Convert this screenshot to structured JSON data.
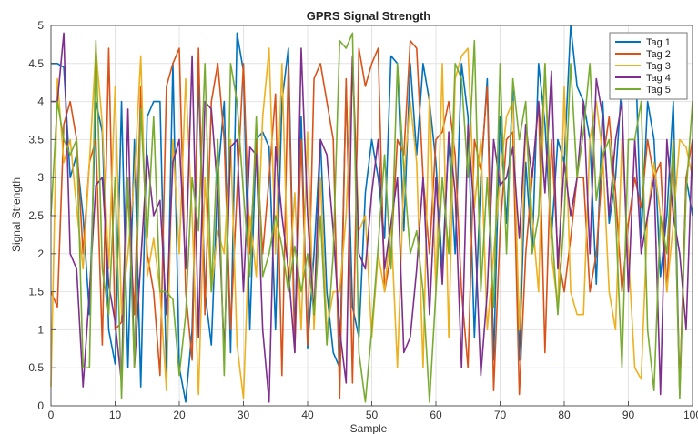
{
  "chart_data": {
    "type": "line",
    "title": "GPRS Signal Strength",
    "xlabel": "Sample",
    "ylabel": "Signal Strength",
    "xlim": [
      0,
      100
    ],
    "ylim": [
      0,
      5
    ],
    "xticks": [
      0,
      10,
      20,
      30,
      40,
      50,
      60,
      70,
      80,
      90,
      100
    ],
    "yticks": [
      0,
      0.5,
      1,
      1.5,
      2,
      2.5,
      3,
      3.5,
      4,
      4.5,
      5
    ],
    "grid": true,
    "legend_position": "top-right",
    "series": [
      {
        "name": "Tag 1",
        "color": "#0072BD",
        "values": [
          4.5,
          4.5,
          4.45,
          3.0,
          3.3,
          2.5,
          1.2,
          4.0,
          3.6,
          1.0,
          0.55,
          4.0,
          0.5,
          3.5,
          0.25,
          3.8,
          4.0,
          4.0,
          0.4,
          4.5,
          0.5,
          0.05,
          1.0,
          4.3,
          1.5,
          0.8,
          3.0,
          4.0,
          0.7,
          4.9,
          4.4,
          1.0,
          3.5,
          3.6,
          3.4,
          1.0,
          4.0,
          4.7,
          0.9,
          3.8,
          0.75,
          2.0,
          3.5,
          1.5,
          0.7,
          0.5,
          4.2,
          1.3,
          0.9,
          2.8,
          3.5,
          3.0,
          2.2,
          4.6,
          4.5,
          2.3,
          4.5,
          3.3,
          4.5,
          4.0,
          3.2,
          1.8,
          3.5,
          2.0,
          4.5,
          3.8,
          0.9,
          3.0,
          4.3,
          0.6,
          3.8,
          2.4,
          4.2,
          0.6,
          3.2,
          2.0,
          4.5,
          3.7,
          2.2,
          3.5,
          3.2,
          5.0,
          4.2,
          4.0,
          3.5,
          1.6,
          4.0,
          2.4,
          3.0,
          4.3,
          4.2,
          4.9,
          2.2,
          4.0,
          3.5,
          1.7,
          2.5,
          4.0,
          0.15,
          3.0,
          2.5
        ]
      },
      {
        "name": "Tag 2",
        "color": "#D95319",
        "values": [
          1.5,
          1.3,
          3.7,
          4.0,
          3.5,
          2.0,
          3.2,
          3.5,
          0.8,
          4.7,
          1.0,
          1.1,
          2.8,
          1.2,
          4.2,
          2.0,
          1.5,
          0.4,
          4.2,
          4.5,
          4.7,
          1.5,
          0.6,
          4.7,
          1.2,
          4.0,
          4.5,
          3.5,
          1.0,
          2.8,
          4.5,
          2.0,
          3.5,
          2.0,
          3.0,
          4.1,
          0.4,
          4.5,
          0.7,
          3.5,
          0.8,
          4.3,
          4.5,
          4.0,
          3.5,
          0.1,
          4.3,
          0.3,
          4.7,
          4.2,
          4.5,
          4.7,
          1.5,
          2.0,
          3.5,
          3.3,
          4.8,
          4.7,
          3.0,
          2.0,
          3.5,
          3.6,
          4.0,
          3.3,
          1.5,
          0.5,
          3.5,
          3.1,
          4.2,
          0.2,
          2.3,
          3.5,
          3.6,
          0.15,
          2.0,
          3.0,
          4.0,
          0.7,
          3.5,
          2.0,
          1.5,
          2.2,
          3.0,
          3.0,
          1.5,
          2.0,
          3.2,
          3.8,
          2.8,
          1.5,
          2.4,
          3.0,
          2.6,
          3.5,
          3.0,
          3.2,
          1.5,
          3.5,
          0.2,
          3.0,
          3.5
        ]
      },
      {
        "name": "Tag 3",
        "color": "#EDB120",
        "values": [
          0.25,
          4.3,
          3.2,
          3.5,
          2.6,
          1.8,
          3.2,
          4.7,
          3.7,
          1.8,
          4.2,
          1.2,
          2.0,
          3.0,
          4.6,
          1.7,
          2.2,
          1.5,
          0.2,
          3.5,
          2.0,
          4.3,
          2.5,
          0.15,
          3.0,
          1.5,
          2.3,
          2.0,
          3.5,
          0.8,
          0.1,
          2.5,
          1.7,
          3.8,
          4.7,
          2.0,
          4.5,
          1.5,
          2.8,
          1.0,
          3.6,
          1.0,
          3.0,
          1.0,
          1.5,
          1.5,
          2.5,
          4.6,
          2.3,
          2.5,
          0.9,
          2.0,
          1.5,
          2.4,
          0.5,
          3.0,
          4.0,
          3.2,
          0.5,
          4.1,
          1.5,
          4.5,
          0.9,
          4.3,
          4.6,
          4.7,
          2.6,
          3.5,
          1.0,
          2.0,
          3.0,
          3.8,
          4.0,
          1.0,
          3.7,
          2.5,
          1.5,
          4.5,
          2.0,
          1.3,
          4.2,
          1.5,
          1.2,
          1.2,
          3.5,
          4.0,
          3.3,
          1.5,
          1.0,
          3.5,
          2.0,
          0.5,
          0.35,
          2.5,
          3.2,
          2.5,
          1.5,
          2.4,
          3.5,
          3.4,
          3.0
        ]
      },
      {
        "name": "Tag 4",
        "color": "#7E2F8E",
        "values": [
          4.0,
          4.0,
          4.9,
          2.0,
          1.8,
          0.25,
          1.5,
          2.9,
          3.0,
          1.6,
          1.1,
          0.3,
          3.9,
          0.5,
          1.9,
          3.3,
          2.5,
          2.7,
          1.2,
          3.2,
          3.5,
          1.8,
          4.6,
          0.9,
          4.0,
          3.9,
          2.8,
          0.7,
          3.4,
          3.5,
          1.5,
          3.4,
          3.3,
          1.0,
          0.05,
          3.4,
          2.5,
          1.8,
          0.7,
          4.7,
          2.5,
          1.2,
          3.5,
          3.3,
          2.3,
          1.0,
          0.3,
          4.6,
          2.0,
          1.8,
          2.8,
          3.5,
          1.8,
          2.4,
          3.0,
          0.7,
          0.9,
          1.8,
          3.0,
          1.2,
          3.0,
          1.6,
          3.6,
          2.8,
          0.5,
          3.7,
          2.5,
          0.4,
          1.5,
          3.5,
          2.9,
          3.0,
          3.4,
          2.2,
          3.7,
          3.0,
          4.0,
          2.8,
          4.4,
          1.8,
          3.2,
          2.5,
          3.0,
          4.0,
          2.0,
          4.3,
          3.8,
          2.5,
          3.5,
          4.0,
          1.5,
          3.5,
          2.0,
          2.5,
          3.0,
          0.15,
          3.5,
          2.5,
          2.0,
          1.0,
          3.5
        ]
      },
      {
        "name": "Tag 5",
        "color": "#77AC30",
        "values": [
          2.5,
          4.0,
          3.5,
          3.3,
          3.5,
          0.5,
          0.5,
          4.8,
          1.8,
          1.2,
          3.0,
          0.1,
          3.0,
          0.5,
          3.9,
          2.2,
          3.8,
          1.5,
          1.5,
          1.4,
          0.4,
          1.2,
          3.0,
          2.3,
          4.5,
          1.5,
          3.5,
          0.4,
          4.5,
          4.0,
          2.8,
          1.7,
          3.8,
          1.7,
          2.0,
          2.5,
          2.1,
          1.5,
          2.1,
          1.5,
          2.0,
          1.2,
          2.5,
          0.8,
          2.0,
          4.8,
          4.7,
          4.9,
          0.7,
          0.05,
          1.0,
          2.1,
          3.3,
          1.8,
          4.5,
          3.1,
          2.0,
          2.3,
          1.5,
          0.05,
          1.5,
          3.0,
          2.0,
          4.5,
          4.3,
          3.0,
          4.8,
          1.5,
          3.0,
          1.3,
          4.5,
          2.0,
          4.3,
          3.5,
          4.0,
          2.0,
          2.5,
          4.5,
          2.4,
          1.2,
          2.5,
          4.5,
          3.0,
          3.6,
          4.5,
          2.7,
          3.3,
          3.5,
          2.5,
          0.5,
          3.5,
          3.5,
          4.0,
          1.0,
          0.2,
          2.5,
          2.0,
          3.5,
          0.1,
          2.8,
          4.0
        ]
      }
    ]
  }
}
